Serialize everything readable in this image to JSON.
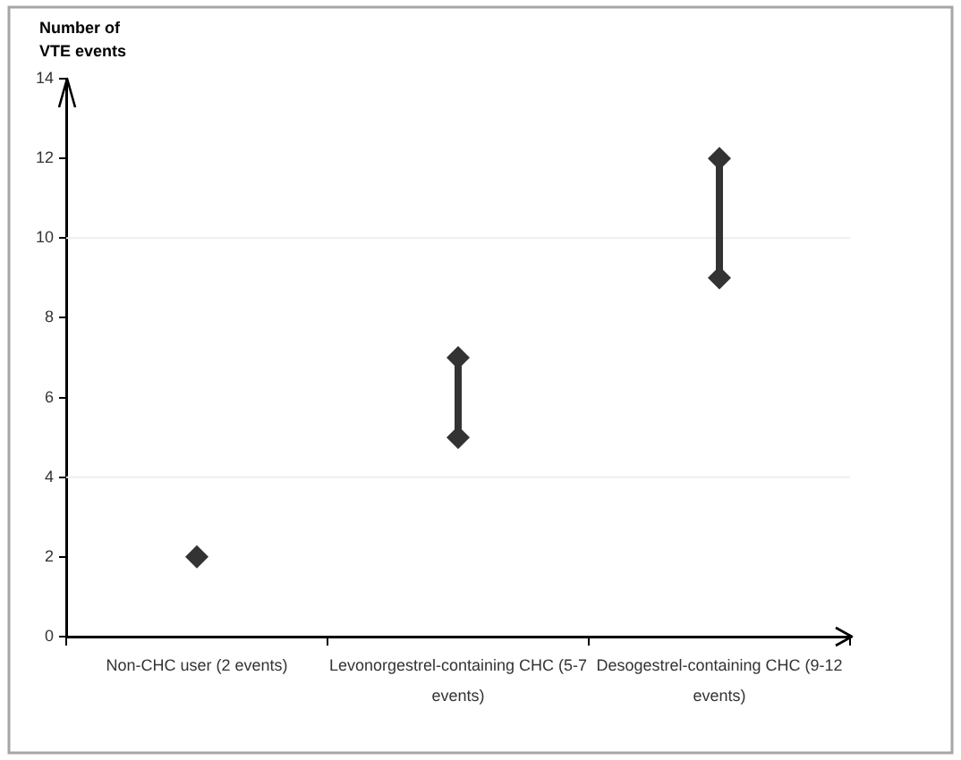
{
  "chart_data": {
    "type": "line",
    "ylabel": "Number of VTE events",
    "marker": "diamond",
    "categories": [
      "Non-CHC user (2 events)",
      "Levonorgestrel-containing CHC (5-7 events)",
      "Desogestrel-containing CHC (9-12 events)"
    ],
    "series": [
      {
        "color": "#333333",
        "x": [
          "Non-CHC user (2 events)"
        ],
        "values": [
          2
        ]
      },
      {
        "color": "#333333",
        "x": [
          "Levonorgestrel-containing CHC (5-7 events)",
          "Levonorgestrel-containing CHC (5-7 events)"
        ],
        "values": [
          5,
          7
        ]
      },
      {
        "color": "#333333",
        "x": [
          "Desogestrel-containing CHC (9-12 events)",
          "Desogestrel-containing CHC (9-12 events)"
        ],
        "values": [
          9,
          12
        ]
      }
    ],
    "ylim": [
      0,
      14
    ],
    "yticks": [
      0,
      2,
      4,
      6,
      8,
      10,
      12,
      14
    ],
    "ref_lines": [
      {
        "axis": "y",
        "value": 4,
        "color": "#eeeeee"
      },
      {
        "axis": "y",
        "value": 10,
        "color": "#eeeeee"
      }
    ]
  }
}
